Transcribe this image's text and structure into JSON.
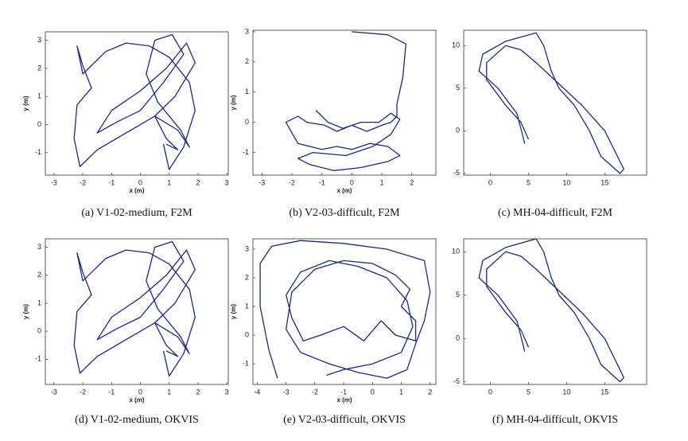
{
  "chart_data": [
    {
      "type": "line",
      "caption": "(a) V1-02-medium, F2M",
      "xlabel": "x (m)",
      "ylabel": "y (m)",
      "xlim": [
        -3.3,
        3.05
      ],
      "ylim": [
        -1.8,
        3.3
      ],
      "xticks": [
        -3,
        -2,
        -1,
        0,
        1,
        2,
        3
      ],
      "yticks": [
        -1,
        0,
        1,
        2,
        3
      ],
      "series": [
        {
          "color": "#1a2a80",
          "x": [
            0.8,
            1.0,
            1.5,
            1.9,
            1.7,
            1.0,
            0.3,
            -0.5,
            -1.2,
            -1.6,
            -2.0,
            -2.2,
            -2.0,
            -1.7,
            -2.2,
            -2.3,
            -2.1,
            -1.5,
            -0.5,
            0.5,
            1.3,
            1.7,
            1.4,
            0.6,
            0.2,
            0.5,
            1.1,
            1.5,
            0.8,
            0.0,
            -0.8,
            -1.5,
            -1.0,
            0.0,
            0.9,
            1.6,
            1.9,
            1.2,
            0.5,
            0.9,
            1.3,
            0.9
          ],
          "values": [
            -0.7,
            -1.6,
            -0.8,
            0.5,
            1.5,
            2.4,
            2.8,
            2.9,
            2.6,
            2.2,
            1.8,
            2.8,
            2.1,
            1.3,
            0.7,
            -0.5,
            -1.5,
            -0.9,
            -0.3,
            0.3,
            -0.2,
            -0.8,
            -0.2,
            0.8,
            1.8,
            3.0,
            3.2,
            2.5,
            1.5,
            0.5,
            0.1,
            -0.3,
            0.5,
            1.2,
            2.0,
            2.9,
            2.2,
            1.0,
            0.3,
            -0.5,
            -0.9,
            -0.7
          ]
        }
      ]
    },
    {
      "type": "line",
      "caption": "(b) V2-03-difficult, F2M",
      "xlabel": "x (m)",
      "ylabel": "y (m)",
      "xlim": [
        -3.3,
        2.8
      ],
      "ylim": [
        -1.75,
        3.05
      ],
      "xticks": [
        -3,
        -2,
        -1,
        0,
        1,
        2
      ],
      "yticks": [
        -1,
        0,
        1,
        2,
        3
      ],
      "series": [
        {
          "color": "#1a2a80",
          "x": [
            0.0,
            1.2,
            1.8,
            1.7,
            1.5,
            1.5,
            1.3,
            1.0,
            0.5,
            0.0,
            -0.5,
            -0.9,
            -1.5,
            -1.8,
            -2.2,
            -1.8,
            -1.0,
            -0.5,
            0.0,
            0.6,
            1.2,
            1.6,
            1.2,
            0.3,
            -0.6,
            -1.4,
            -1.8,
            -1.3,
            -0.2,
            0.7,
            1.3,
            1.6,
            1.3,
            0.9,
            0.3,
            -0.3,
            -0.8,
            -1.2
          ],
          "values": [
            3.0,
            2.9,
            2.6,
            1.5,
            0.6,
            0.2,
            0.0,
            -0.1,
            -0.3,
            -0.1,
            -0.3,
            -0.1,
            0.0,
            0.2,
            0.0,
            -0.7,
            -0.9,
            -0.8,
            -0.9,
            -0.7,
            -0.8,
            -1.1,
            -1.3,
            -1.5,
            -1.6,
            -1.4,
            -1.2,
            -1.0,
            -1.1,
            -0.8,
            -0.4,
            0.1,
            0.3,
            0.0,
            0.0,
            -0.2,
            0.0,
            0.4
          ]
        }
      ]
    },
    {
      "type": "line",
      "caption": "(c) MH-04-difficult, F2M",
      "xlabel": "",
      "ylabel": "",
      "xlim": [
        -3.5,
        20.5
      ],
      "ylim": [
        -5.2,
        11.8
      ],
      "xticks": [
        0,
        5,
        10,
        15
      ],
      "yticks": [
        -5,
        0,
        5,
        10
      ],
      "series": [
        {
          "color": "#1a2a80",
          "x": [
            4.5,
            3.5,
            1.0,
            -1.5,
            -1.0,
            2.0,
            6.0,
            7.0,
            8.0,
            9.0,
            11.0,
            13.0,
            14.5,
            17.0,
            17.5,
            15.0,
            12.0,
            9.0,
            6.0,
            4.0,
            2.0,
            -0.5,
            -0.5,
            2.0,
            4.0,
            5.0
          ],
          "values": [
            -1.5,
            2.0,
            5.0,
            7.0,
            9.0,
            10.5,
            11.5,
            10.0,
            7.0,
            5.0,
            3.0,
            0.0,
            -3.0,
            -5.0,
            -4.5,
            0.0,
            3.0,
            5.5,
            8.0,
            9.5,
            10.0,
            8.0,
            6.0,
            3.0,
            1.0,
            -1.0
          ]
        }
      ]
    },
    {
      "type": "line",
      "caption": "(d) V1-02-medium, OKVIS",
      "xlabel": "x (m)",
      "ylabel": "y (m)",
      "xlim": [
        -3.3,
        3.05
      ],
      "ylim": [
        -1.9,
        3.3
      ],
      "xticks": [
        -3,
        -2,
        -1,
        0,
        1,
        2,
        3
      ],
      "yticks": [
        -1,
        0,
        1,
        2,
        3
      ],
      "series": [
        {
          "color": "#1a2a80",
          "x": [
            0.8,
            1.0,
            1.5,
            1.9,
            1.7,
            1.0,
            0.3,
            -0.5,
            -1.2,
            -1.6,
            -2.0,
            -2.2,
            -2.0,
            -1.7,
            -2.2,
            -2.3,
            -2.1,
            -1.5,
            -0.5,
            0.5,
            1.3,
            1.7,
            1.4,
            0.6,
            0.2,
            0.5,
            1.1,
            1.5,
            0.8,
            0.0,
            -0.8,
            -1.5,
            -1.0,
            0.0,
            0.9,
            1.6,
            1.9,
            1.2,
            0.5,
            0.9,
            1.3,
            0.9
          ],
          "values": [
            -0.7,
            -1.6,
            -0.8,
            0.5,
            1.5,
            2.4,
            2.8,
            2.9,
            2.6,
            2.2,
            1.8,
            2.8,
            2.1,
            1.3,
            0.7,
            -0.5,
            -1.5,
            -0.9,
            -0.3,
            0.3,
            -0.2,
            -0.8,
            -0.2,
            0.8,
            1.8,
            3.0,
            3.2,
            2.5,
            1.5,
            0.5,
            0.1,
            -0.3,
            0.5,
            1.2,
            2.0,
            2.9,
            2.2,
            1.0,
            0.3,
            -0.5,
            -0.9,
            -0.7
          ]
        }
      ]
    },
    {
      "type": "line",
      "caption": "(e) V2-03-difficult, OKVIS",
      "xlabel": "x (m)",
      "ylabel": "y (m)",
      "xlim": [
        -4.15,
        2.2
      ],
      "ylim": [
        -1.72,
        3.36
      ],
      "xticks": [
        -4,
        -3,
        -2,
        -1,
        0,
        1,
        2
      ],
      "yticks": [
        -1,
        0,
        1,
        2,
        3
      ],
      "series": [
        {
          "color": "#1a2a80",
          "x": [
            -3.3,
            -3.6,
            -3.9,
            -3.9,
            -3.5,
            -2.5,
            -1.0,
            0.5,
            1.8,
            2.0,
            1.8,
            1.5,
            1.2,
            0.5,
            -0.5,
            -1.5,
            -2.5,
            -3.0,
            -2.8,
            -2.0,
            -1.0,
            0.0,
            0.8,
            1.3,
            1.0,
            1.5,
            1.5,
            0.8,
            0.3,
            -0.3,
            -1.0,
            -1.8,
            -2.4,
            -2.8,
            -3.0,
            -2.5,
            -1.5,
            -0.5,
            0.5,
            1.2,
            1.4,
            1.0,
            0.0,
            -1.0,
            -1.6
          ],
          "values": [
            -1.5,
            -0.5,
            1.0,
            2.5,
            3.1,
            3.3,
            3.2,
            3.0,
            2.6,
            1.5,
            0.5,
            -0.3,
            -1.2,
            -1.5,
            -1.3,
            -1.0,
            -0.6,
            0.2,
            1.5,
            2.3,
            2.6,
            2.5,
            2.1,
            1.6,
            1.0,
            0.5,
            -0.2,
            0.0,
            0.5,
            -0.2,
            0.3,
            0.0,
            -0.2,
            0.6,
            1.4,
            2.2,
            2.6,
            2.4,
            2.0,
            1.2,
            0.3,
            -0.6,
            -1.0,
            -1.2,
            -1.4
          ]
        }
      ]
    },
    {
      "type": "line",
      "caption": "(f) MH-04-difficult, OKVIS",
      "xlabel": "",
      "ylabel": "",
      "xlim": [
        -3.5,
        20.5
      ],
      "ylim": [
        -5.3,
        11.5
      ],
      "xticks": [
        0,
        5,
        10,
        15
      ],
      "yticks": [
        -5,
        0,
        5,
        10
      ],
      "series": [
        {
          "color": "#1a2a80",
          "x": [
            4.5,
            3.5,
            1.0,
            -1.5,
            -1.0,
            2.0,
            6.0,
            7.0,
            8.0,
            9.0,
            11.0,
            13.0,
            14.5,
            17.0,
            17.5,
            15.0,
            12.0,
            9.0,
            6.0,
            4.0,
            2.0,
            -0.5,
            -0.5,
            2.0,
            4.0,
            5.0
          ],
          "values": [
            -1.5,
            2.0,
            5.0,
            7.0,
            9.0,
            10.5,
            11.5,
            10.0,
            7.0,
            5.0,
            3.0,
            0.0,
            -3.0,
            -5.0,
            -4.5,
            0.0,
            3.0,
            5.5,
            8.0,
            9.5,
            10.0,
            8.0,
            6.0,
            3.0,
            1.0,
            -1.0
          ]
        }
      ]
    }
  ]
}
